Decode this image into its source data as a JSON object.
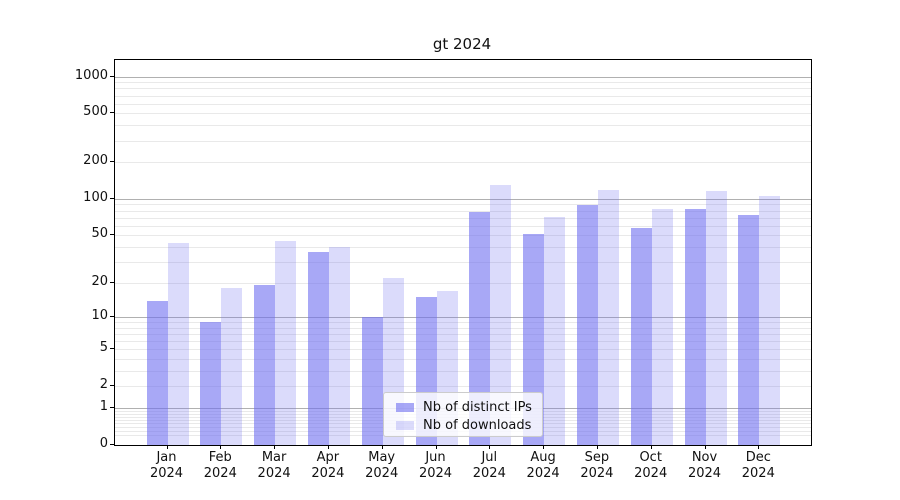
{
  "chart_data": {
    "type": "bar",
    "title": "gt 2024",
    "categories": [
      "Jan",
      "Feb",
      "Mar",
      "Apr",
      "May",
      "Jun",
      "Jul",
      "Aug",
      "Sep",
      "Oct",
      "Nov",
      "Dec"
    ],
    "year_label": "2024",
    "series": [
      {
        "name": "Nb of distinct IPs",
        "values": [
          14,
          9,
          19,
          36,
          10,
          15,
          78,
          51,
          89,
          57,
          83,
          74
        ]
      },
      {
        "name": "Nb of downloads",
        "values": [
          43,
          18,
          45,
          40,
          22,
          17,
          130,
          71,
          118,
          82,
          116,
          106
        ]
      }
    ],
    "yscale": "log(1+v)",
    "yticks": [
      0,
      1,
      2,
      5,
      10,
      20,
      50,
      100,
      200,
      500,
      1000
    ],
    "ylim_top_value": 1340,
    "grid": true,
    "legend_position": "lower center",
    "colors": {
      "distinct_ips": "rgba(110,110,240,0.6)",
      "downloads": "rgba(110,110,240,0.25)",
      "grid_major": "#b0b0b0",
      "grid_minor": "#e9e9e9",
      "spine": "#000000"
    }
  }
}
